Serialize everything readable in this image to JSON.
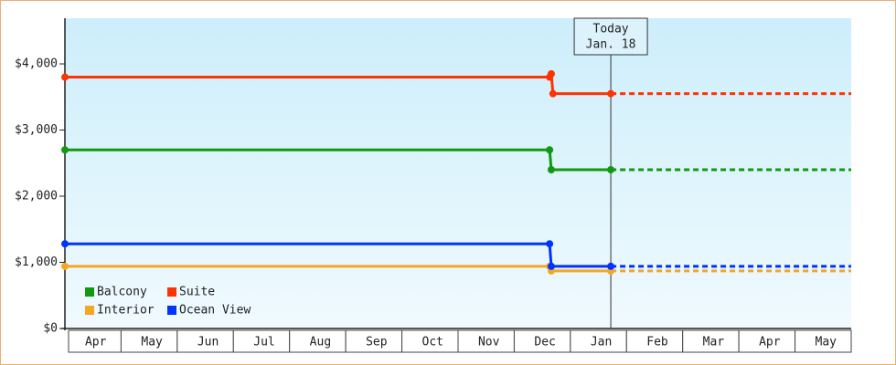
{
  "chart_data": {
    "type": "line",
    "categories": [
      "Apr",
      "May",
      "Jun",
      "Jul",
      "Aug",
      "Sep",
      "Oct",
      "Nov",
      "Dec",
      "Jan",
      "Feb",
      "Mar",
      "Apr",
      "May"
    ],
    "xlim": [
      0,
      14
    ],
    "ylim": [
      0,
      4690
    ],
    "yticks": [
      {
        "value": 0,
        "label": "$0"
      },
      {
        "value": 1000,
        "label": "$1,000"
      },
      {
        "value": 2000,
        "label": "$2,000"
      },
      {
        "value": 3000,
        "label": "$3,000"
      },
      {
        "value": 4000,
        "label": "$4,000"
      }
    ],
    "today": {
      "x": 9.72,
      "label": "Today",
      "date": "Jan. 18"
    },
    "legend": "bottom-left",
    "series": [
      {
        "name": "Balcony",
        "color": "#119911",
        "x": [
          0,
          8.63,
          8.66,
          9.72,
          14
        ],
        "values": [
          2700,
          2700,
          2400,
          2400,
          2400
        ]
      },
      {
        "name": "Suite",
        "color": "#ff3300",
        "x": [
          0,
          8.63,
          8.66,
          8.69,
          9.72,
          14
        ],
        "values": [
          3800,
          3800,
          3850,
          3550,
          3550,
          3550
        ]
      },
      {
        "name": "Interior",
        "color": "#f5a623",
        "x": [
          0,
          8.63,
          8.66,
          9.72,
          14
        ],
        "values": [
          940,
          940,
          870,
          870,
          870
        ]
      },
      {
        "name": "Ocean View",
        "color": "#0033ff",
        "x": [
          0,
          8.63,
          8.66,
          9.72,
          14
        ],
        "values": [
          1280,
          1280,
          940,
          940,
          940
        ]
      }
    ]
  }
}
